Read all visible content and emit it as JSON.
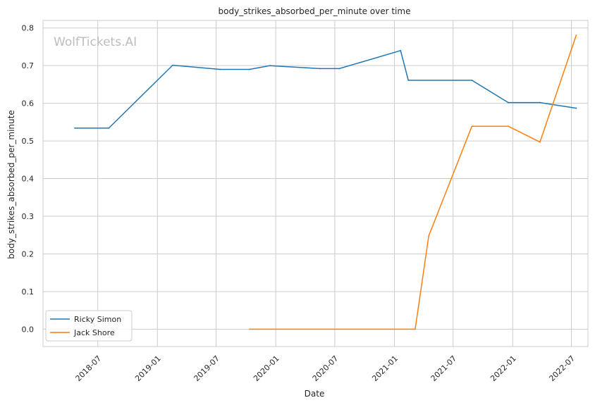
{
  "watermark": "WolfTickets.AI",
  "chart_data": {
    "type": "line",
    "title": "body_strikes_absorbed_per_minute over time",
    "xlabel": "Date",
    "ylabel": "body_strikes_absorbed_per_minute",
    "x_ticks": [
      "2018-07",
      "2019-01",
      "2019-07",
      "2020-01",
      "2020-07",
      "2021-01",
      "2021-07",
      "2022-01",
      "2022-07"
    ],
    "y_ticks": [
      0.0,
      0.1,
      0.2,
      0.3,
      0.4,
      0.5,
      0.6,
      0.7,
      0.8
    ],
    "y_tick_labels": [
      "0.0",
      "0.1",
      "0.2",
      "0.3",
      "0.4",
      "0.5",
      "0.6",
      "0.7",
      "0.8"
    ],
    "xlim": [
      "2018-01-13",
      "2022-08-21"
    ],
    "ylim": [
      -0.046,
      0.82
    ],
    "grid": true,
    "legend_position": "lower-left",
    "series": [
      {
        "name": "Ricky Simon",
        "color": "#1f77b4",
        "points": [
          {
            "x": "2018-04-21",
            "y": 0.534
          },
          {
            "x": "2018-08-04",
            "y": 0.534
          },
          {
            "x": "2019-02-17",
            "y": 0.701
          },
          {
            "x": "2019-07-13",
            "y": 0.69
          },
          {
            "x": "2019-10-12",
            "y": 0.69
          },
          {
            "x": "2019-12-14",
            "y": 0.7
          },
          {
            "x": "2020-05-16",
            "y": 0.692
          },
          {
            "x": "2020-07-15",
            "y": 0.692
          },
          {
            "x": "2021-01-20",
            "y": 0.74
          },
          {
            "x": "2021-02-13",
            "y": 0.661
          },
          {
            "x": "2021-08-28",
            "y": 0.661
          },
          {
            "x": "2021-12-18",
            "y": 0.602
          },
          {
            "x": "2022-03-26",
            "y": 0.602
          },
          {
            "x": "2022-07-16",
            "y": 0.587
          }
        ]
      },
      {
        "name": "Jack Shore",
        "color": "#ff7f0e",
        "points": [
          {
            "x": "2019-10-12",
            "y": 0.0
          },
          {
            "x": "2021-03-06",
            "y": 0.0
          },
          {
            "x": "2021-04-17",
            "y": 0.248
          },
          {
            "x": "2021-08-28",
            "y": 0.539
          },
          {
            "x": "2021-12-18",
            "y": 0.539
          },
          {
            "x": "2022-03-26",
            "y": 0.497
          },
          {
            "x": "2022-07-16",
            "y": 0.781
          }
        ]
      }
    ]
  }
}
